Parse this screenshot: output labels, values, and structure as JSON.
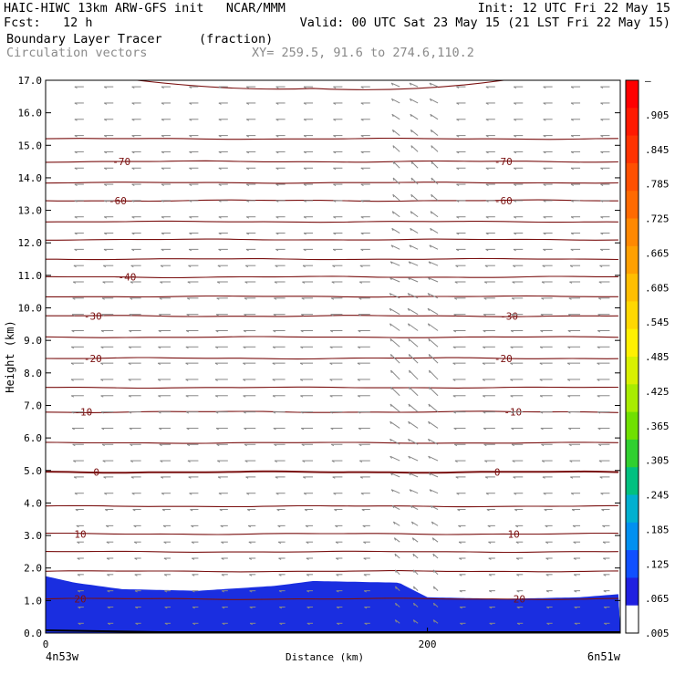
{
  "header": {
    "line1_left": "HAIC-HIWC 13km ARW-GFS init   NCAR/MMM",
    "line1_right": "Init: 12 UTC Fri 22 May 15",
    "line2_left": "Fcst:   12 h",
    "line2_right": "Valid: 00 UTC Sat 23 May 15 (21 LST Fri 22 May 15)",
    "field_name": "Boundary Layer Tracer",
    "field_units": "(fraction)",
    "vectors_label": "Circulation vectors",
    "xy_label": "XY= 259.5, 91.6 to 274.6,110.2"
  },
  "chart_data": {
    "type": "heatmap",
    "xlabel": "Distance (km)",
    "ylabel": "Height (km)",
    "xlim": [
      0,
      301
    ],
    "ylim": [
      0,
      17
    ],
    "x_ticks": [
      {
        "value": 0,
        "label": "0"
      },
      {
        "value": 200,
        "label": "200"
      }
    ],
    "y_ticks": [
      "0.0",
      "1.0",
      "2.0",
      "3.0",
      "4.0",
      "5.0",
      "6.0",
      "7.0",
      "8.0",
      "9.0",
      "10.0",
      "11.0",
      "12.0",
      "13.0",
      "14.0",
      "15.0",
      "16.0",
      "17.0"
    ],
    "x_end_labels": {
      "left": "4n53w",
      "right": "6n51w"
    },
    "colorbar": {
      "labels": [
        "–",
        ".905",
        ".845",
        ".785",
        ".725",
        ".665",
        ".605",
        ".545",
        ".485",
        ".425",
        ".365",
        ".305",
        ".245",
        ".185",
        ".125",
        ".065",
        ".005"
      ],
      "colors": [
        "#ff0000",
        "#ff1a00",
        "#ff3300",
        "#ff5000",
        "#ff6a00",
        "#ff8800",
        "#ffa000",
        "#ffbe00",
        "#ffd800",
        "#fff000",
        "#d8f000",
        "#a8ec00",
        "#70e000",
        "#30d030",
        "#00c080",
        "#00b0d0",
        "#0090f0",
        "#1050ff",
        "#2020e0",
        "#ffffff"
      ]
    },
    "tracer_top_km": [
      {
        "x": 0,
        "top": 1.75
      },
      {
        "x": 15,
        "top": 1.55
      },
      {
        "x": 40,
        "top": 1.35
      },
      {
        "x": 80,
        "top": 1.3
      },
      {
        "x": 120,
        "top": 1.45
      },
      {
        "x": 140,
        "top": 1.6
      },
      {
        "x": 185,
        "top": 1.55
      },
      {
        "x": 200,
        "top": 1.1
      },
      {
        "x": 240,
        "top": 1.05
      },
      {
        "x": 280,
        "top": 1.1
      },
      {
        "x": 301,
        "top": 1.2
      }
    ],
    "isotherms": [
      {
        "label": "20",
        "km": 1.05,
        "labels_at": [
          15,
          245
        ]
      },
      {
        "label": "10",
        "km": 3.05,
        "labels_at": [
          15,
          242
        ]
      },
      {
        "label": "0",
        "km": 4.95,
        "labels_at": [
          25,
          235
        ]
      },
      {
        "label": "-10",
        "km": 6.8,
        "labels_at": [
          15,
          240
        ]
      },
      {
        "label": "-20",
        "km": 8.45,
        "labels_at": [
          20,
          235
        ]
      },
      {
        "label": "-30",
        "km": 9.75,
        "labels_at": [
          20,
          238
        ]
      },
      {
        "label": "-40",
        "km": 10.95,
        "labels_at": [
          38
        ]
      },
      {
        "label": "-60",
        "km": 13.3,
        "labels_at": [
          33,
          235
        ]
      },
      {
        "label": "-70",
        "km": 14.5,
        "labels_at": [
          35,
          235
        ]
      }
    ],
    "unlabeled_contours_km": [
      1.9,
      2.5,
      3.9,
      5.85,
      7.55,
      9.1,
      10.35,
      11.5,
      12.1,
      12.65,
      13.85,
      15.2
    ]
  }
}
